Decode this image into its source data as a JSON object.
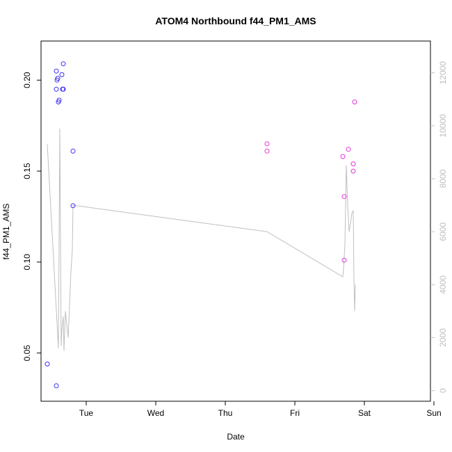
{
  "chart_data": {
    "type": "scatter",
    "title": "ATOM4 Northbound f44_PM1_AMS",
    "xlabel": "Date",
    "ylabel": "f44_PM1_AMS",
    "x_ticks": [
      "Tue",
      "Wed",
      "Thu",
      "Fri",
      "Sat",
      "Sun"
    ],
    "x_range_days": [
      -0.65,
      4.95
    ],
    "y_ticks": [
      "0.05",
      "0.10",
      "0.15",
      "0.20"
    ],
    "y_tick_values": [
      0.05,
      0.1,
      0.15,
      0.2
    ],
    "ylim": [
      0.0235,
      0.2215
    ],
    "y2_ticks": [
      "0",
      "2000",
      "4000",
      "6000",
      "8000",
      "10000",
      "12000"
    ],
    "y2_tick_values": [
      0,
      2000,
      4000,
      6000,
      8000,
      10000,
      12000
    ],
    "y2lim": [
      -400,
      13200
    ],
    "grid": false,
    "colors": {
      "left_points": "#3b2ef0",
      "right_points": "#e034dc",
      "line": "#bfbfbf",
      "right_axis": "#bebebe",
      "axis": "#000000"
    },
    "series": [
      {
        "kind": "points",
        "color_key": "left_points",
        "x_days": [
          -0.56,
          -0.43,
          -0.42,
          -0.41,
          -0.43,
          -0.39,
          -0.4,
          -0.33,
          -0.35,
          -0.34,
          -0.33,
          -0.43,
          -0.19,
          -0.19
        ],
        "y": [
          0.044,
          0.032,
          0.2,
          0.201,
          0.195,
          0.189,
          0.188,
          0.209,
          0.203,
          0.195,
          0.195,
          0.205,
          0.161,
          0.131
        ]
      },
      {
        "kind": "points",
        "color_key": "right_points",
        "x_days": [
          2.6,
          2.6,
          3.69,
          3.71,
          3.71,
          3.77,
          3.84,
          3.84,
          3.86
        ],
        "y": [
          0.165,
          0.161,
          0.158,
          0.136,
          0.101,
          0.162,
          0.154,
          0.15,
          0.188
        ]
      },
      {
        "kind": "line",
        "axis": "right",
        "color_key": "line",
        "x_days": [
          -0.56,
          -0.4,
          -0.38,
          -0.36,
          -0.35,
          -0.33,
          -0.32,
          -0.3,
          -0.26,
          -0.22,
          -0.2,
          -0.19,
          -0.19,
          2.6,
          2.6,
          3.69,
          3.7,
          3.72,
          3.74,
          3.76,
          3.78,
          3.8,
          3.82,
          3.84,
          3.85,
          3.86,
          3.87
        ],
        "y2": [
          9300,
          1600,
          9900,
          1700,
          2300,
          2800,
          1500,
          3000,
          2000,
          4500,
          5300,
          7000,
          7000,
          6000,
          6000,
          4300,
          4600,
          5500,
          8500,
          7000,
          6000,
          6300,
          6700,
          6800,
          4200,
          3000,
          4000
        ]
      }
    ]
  }
}
